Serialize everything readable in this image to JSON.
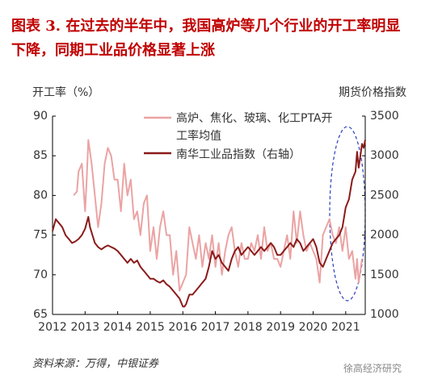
{
  "title": "图表 3.  在过去的半年中，我国高炉等几个行业的开工率明显下降，同期工业品价格显著上涨",
  "source": "资料来源：万得，中银证券",
  "watermark": "徐高经济研究",
  "chart_data": {
    "type": "line",
    "y_label": "开工率（%）",
    "y2_label": "期货价格指数",
    "xlim": [
      2012,
      2021.6
    ],
    "xticks": [
      2012,
      2013,
      2014,
      2015,
      2016,
      2017,
      2018,
      2019,
      2020,
      2021
    ],
    "ylim": [
      65,
      90
    ],
    "yticks": [
      65,
      70,
      75,
      80,
      85,
      90
    ],
    "y2lim": [
      1000,
      3500
    ],
    "y2ticks": [
      1000,
      1500,
      2000,
      2500,
      3000,
      3500
    ],
    "grid": false,
    "series": [
      {
        "name": "高炉、焦化、玻璃、化工PTA开工率均值",
        "color": "#eba3a3",
        "x": [
          2012.65,
          2012.75,
          2012.8,
          2012.9,
          2013.0,
          2013.05,
          2013.1,
          2013.2,
          2013.3,
          2013.4,
          2013.5,
          2013.6,
          2013.7,
          2013.8,
          2013.9,
          2014.0,
          2014.1,
          2014.2,
          2014.3,
          2014.4,
          2014.5,
          2014.6,
          2014.7,
          2014.8,
          2014.9,
          2015.0,
          2015.1,
          2015.2,
          2015.3,
          2015.4,
          2015.5,
          2015.6,
          2015.7,
          2015.8,
          2015.9,
          2016.0,
          2016.1,
          2016.2,
          2016.3,
          2016.4,
          2016.5,
          2016.6,
          2016.7,
          2016.8,
          2016.9,
          2017.0,
          2017.1,
          2017.2,
          2017.3,
          2017.4,
          2017.5,
          2017.6,
          2017.7,
          2017.8,
          2017.9,
          2018.0,
          2018.1,
          2018.2,
          2018.3,
          2018.4,
          2018.5,
          2018.6,
          2018.7,
          2018.8,
          2018.9,
          2019.0,
          2019.1,
          2019.2,
          2019.3,
          2019.4,
          2019.5,
          2019.6,
          2019.7,
          2019.8,
          2019.9,
          2020.0,
          2020.1,
          2020.2,
          2020.3,
          2020.4,
          2020.5,
          2020.6,
          2020.7,
          2020.8,
          2020.9,
          2021.0,
          2021.1,
          2021.2,
          2021.3,
          2021.35,
          2021.4,
          2021.5
        ],
        "values": [
          80,
          80.5,
          83,
          84,
          78,
          82,
          87,
          84,
          80,
          76,
          79,
          84,
          86,
          85,
          82,
          82,
          78,
          84,
          80,
          82,
          77,
          78,
          75,
          79,
          80,
          73,
          76,
          72,
          76,
          78,
          75,
          75,
          70,
          73,
          68,
          69,
          70,
          76,
          74,
          72,
          75,
          71,
          74,
          72,
          75,
          71,
          74,
          70,
          73,
          75,
          76,
          73,
          71,
          74,
          72,
          72,
          74,
          73,
          75,
          72,
          76,
          73,
          74,
          72,
          72,
          71,
          73,
          75,
          72,
          78,
          74,
          78,
          75,
          73,
          74,
          73,
          72,
          69,
          75,
          76,
          77,
          75,
          74,
          76,
          73,
          76,
          72,
          73,
          69.5,
          72,
          69,
          72
        ]
      },
      {
        "name": "南华工业品指数（右轴）",
        "color": "#8b1a1a",
        "axis": "y2",
        "x": [
          2012.0,
          2012.1,
          2012.2,
          2012.3,
          2012.4,
          2012.5,
          2012.6,
          2012.7,
          2012.8,
          2012.9,
          2013.0,
          2013.1,
          2013.15,
          2013.3,
          2013.4,
          2013.5,
          2013.6,
          2013.7,
          2013.8,
          2013.9,
          2014.0,
          2014.1,
          2014.2,
          2014.3,
          2014.4,
          2014.5,
          2014.6,
          2014.7,
          2014.8,
          2014.9,
          2015.0,
          2015.1,
          2015.2,
          2015.3,
          2015.4,
          2015.5,
          2015.6,
          2015.7,
          2015.8,
          2015.9,
          2016.0,
          2016.05,
          2016.1,
          2016.2,
          2016.3,
          2016.4,
          2016.5,
          2016.6,
          2016.7,
          2016.8,
          2016.9,
          2017.0,
          2017.1,
          2017.2,
          2017.3,
          2017.4,
          2017.5,
          2017.6,
          2017.7,
          2017.8,
          2017.9,
          2018.0,
          2018.1,
          2018.2,
          2018.3,
          2018.4,
          2018.5,
          2018.6,
          2018.7,
          2018.8,
          2018.9,
          2019.0,
          2019.1,
          2019.2,
          2019.3,
          2019.4,
          2019.5,
          2019.6,
          2019.7,
          2019.8,
          2019.9,
          2020.0,
          2020.1,
          2020.2,
          2020.3,
          2020.4,
          2020.5,
          2020.6,
          2020.7,
          2020.8,
          2020.9,
          2021.0,
          2021.1,
          2021.2,
          2021.3,
          2021.35,
          2021.4,
          2021.45,
          2021.5,
          2021.55,
          2021.6
        ],
        "values": [
          2050,
          2200,
          2150,
          2100,
          2000,
          1950,
          1900,
          1920,
          1950,
          2000,
          2080,
          2230,
          2100,
          1900,
          1850,
          1820,
          1850,
          1870,
          1850,
          1830,
          1800,
          1750,
          1700,
          1650,
          1700,
          1650,
          1680,
          1600,
          1550,
          1500,
          1450,
          1450,
          1420,
          1400,
          1430,
          1380,
          1350,
          1300,
          1250,
          1200,
          1100,
          1100,
          1130,
          1250,
          1250,
          1300,
          1350,
          1400,
          1450,
          1600,
          1800,
          1700,
          1750,
          1650,
          1600,
          1550,
          1700,
          1800,
          1850,
          1750,
          1800,
          1850,
          1800,
          1750,
          1800,
          1850,
          1800,
          1850,
          1900,
          1850,
          1750,
          1750,
          1800,
          1850,
          1900,
          1850,
          1950,
          1900,
          1800,
          1850,
          1900,
          1950,
          1850,
          1650,
          1600,
          1700,
          1800,
          1900,
          1950,
          2000,
          2100,
          2350,
          2450,
          2700,
          2800,
          3050,
          2850,
          3000,
          3150,
          3100,
          3200
        ]
      }
    ]
  }
}
